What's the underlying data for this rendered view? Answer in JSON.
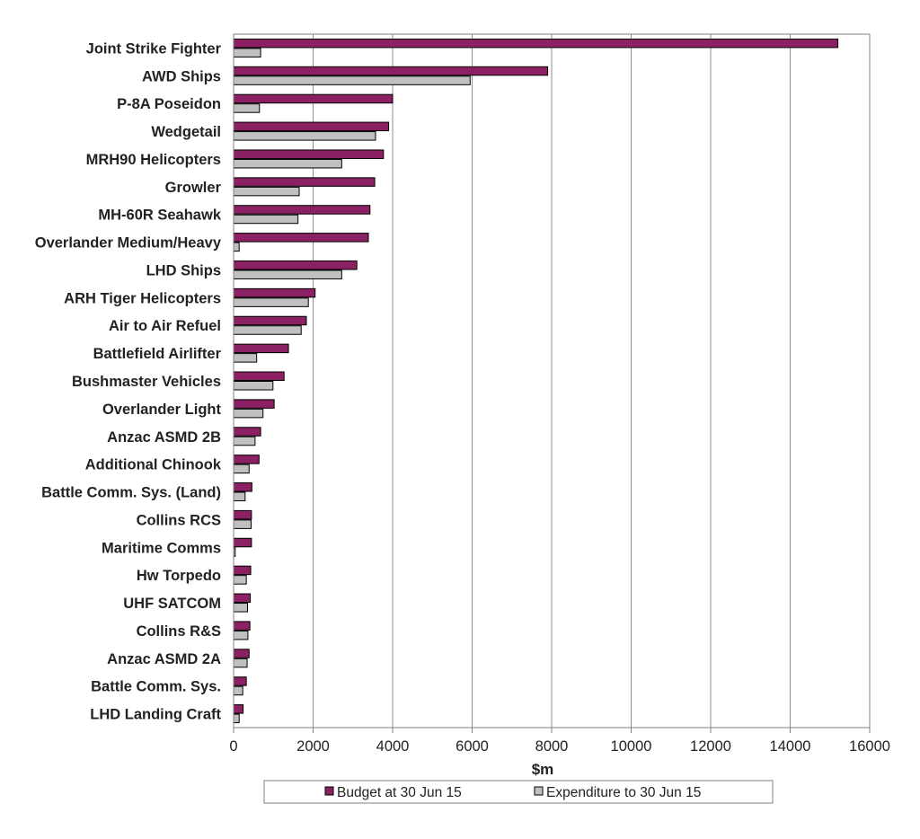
{
  "chart_data": {
    "type": "bar",
    "orientation": "horizontal",
    "categories": [
      "Joint Strike Fighter",
      "AWD Ships",
      "P-8A Poseidon",
      "Wedgetail",
      "MRH90 Helicopters",
      "Growler",
      "MH-60R Seahawk",
      "Overlander Medium/Heavy",
      "LHD Ships",
      "ARH Tiger Helicopters",
      "Air to Air Refuel",
      "Battlefield Airlifter",
      "Bushmaster Vehicles",
      "Overlander Light",
      "Anzac ASMD 2B",
      "Additional Chinook",
      "Battle Comm. Sys. (Land)",
      "Collins RCS",
      "Maritime Comms",
      "Hw Torpedo",
      "UHF SATCOM",
      "Collins R&S",
      "Anzac ASMD 2A",
      "Battle Comm. Sys.",
      "LHD Landing Craft"
    ],
    "series": [
      {
        "name": "Budget at 30 Jun 15",
        "color": "#8b2062",
        "values": [
          15200,
          7900,
          4000,
          3900,
          3770,
          3550,
          3430,
          3390,
          3100,
          2050,
          1830,
          1380,
          1270,
          1020,
          680,
          640,
          460,
          450,
          450,
          430,
          420,
          410,
          390,
          320,
          240
        ]
      },
      {
        "name": "Expenditure to 30 Jun 15",
        "color": "#c0c0c0",
        "values": [
          680,
          5950,
          650,
          3570,
          2720,
          1650,
          1620,
          140,
          2720,
          1880,
          1700,
          580,
          990,
          740,
          540,
          390,
          290,
          440,
          40,
          320,
          350,
          360,
          340,
          230,
          140
        ]
      }
    ],
    "xlabel": "$m",
    "xlim": [
      0,
      16000
    ],
    "xticks": [
      "0",
      "2000",
      "4000",
      "6000",
      "8000",
      "10000",
      "12000",
      "14000",
      "16000"
    ],
    "xtick_values": [
      0,
      2000,
      4000,
      6000,
      8000,
      10000,
      12000,
      14000,
      16000
    ],
    "grid": "vertical",
    "legend": "bottom"
  }
}
